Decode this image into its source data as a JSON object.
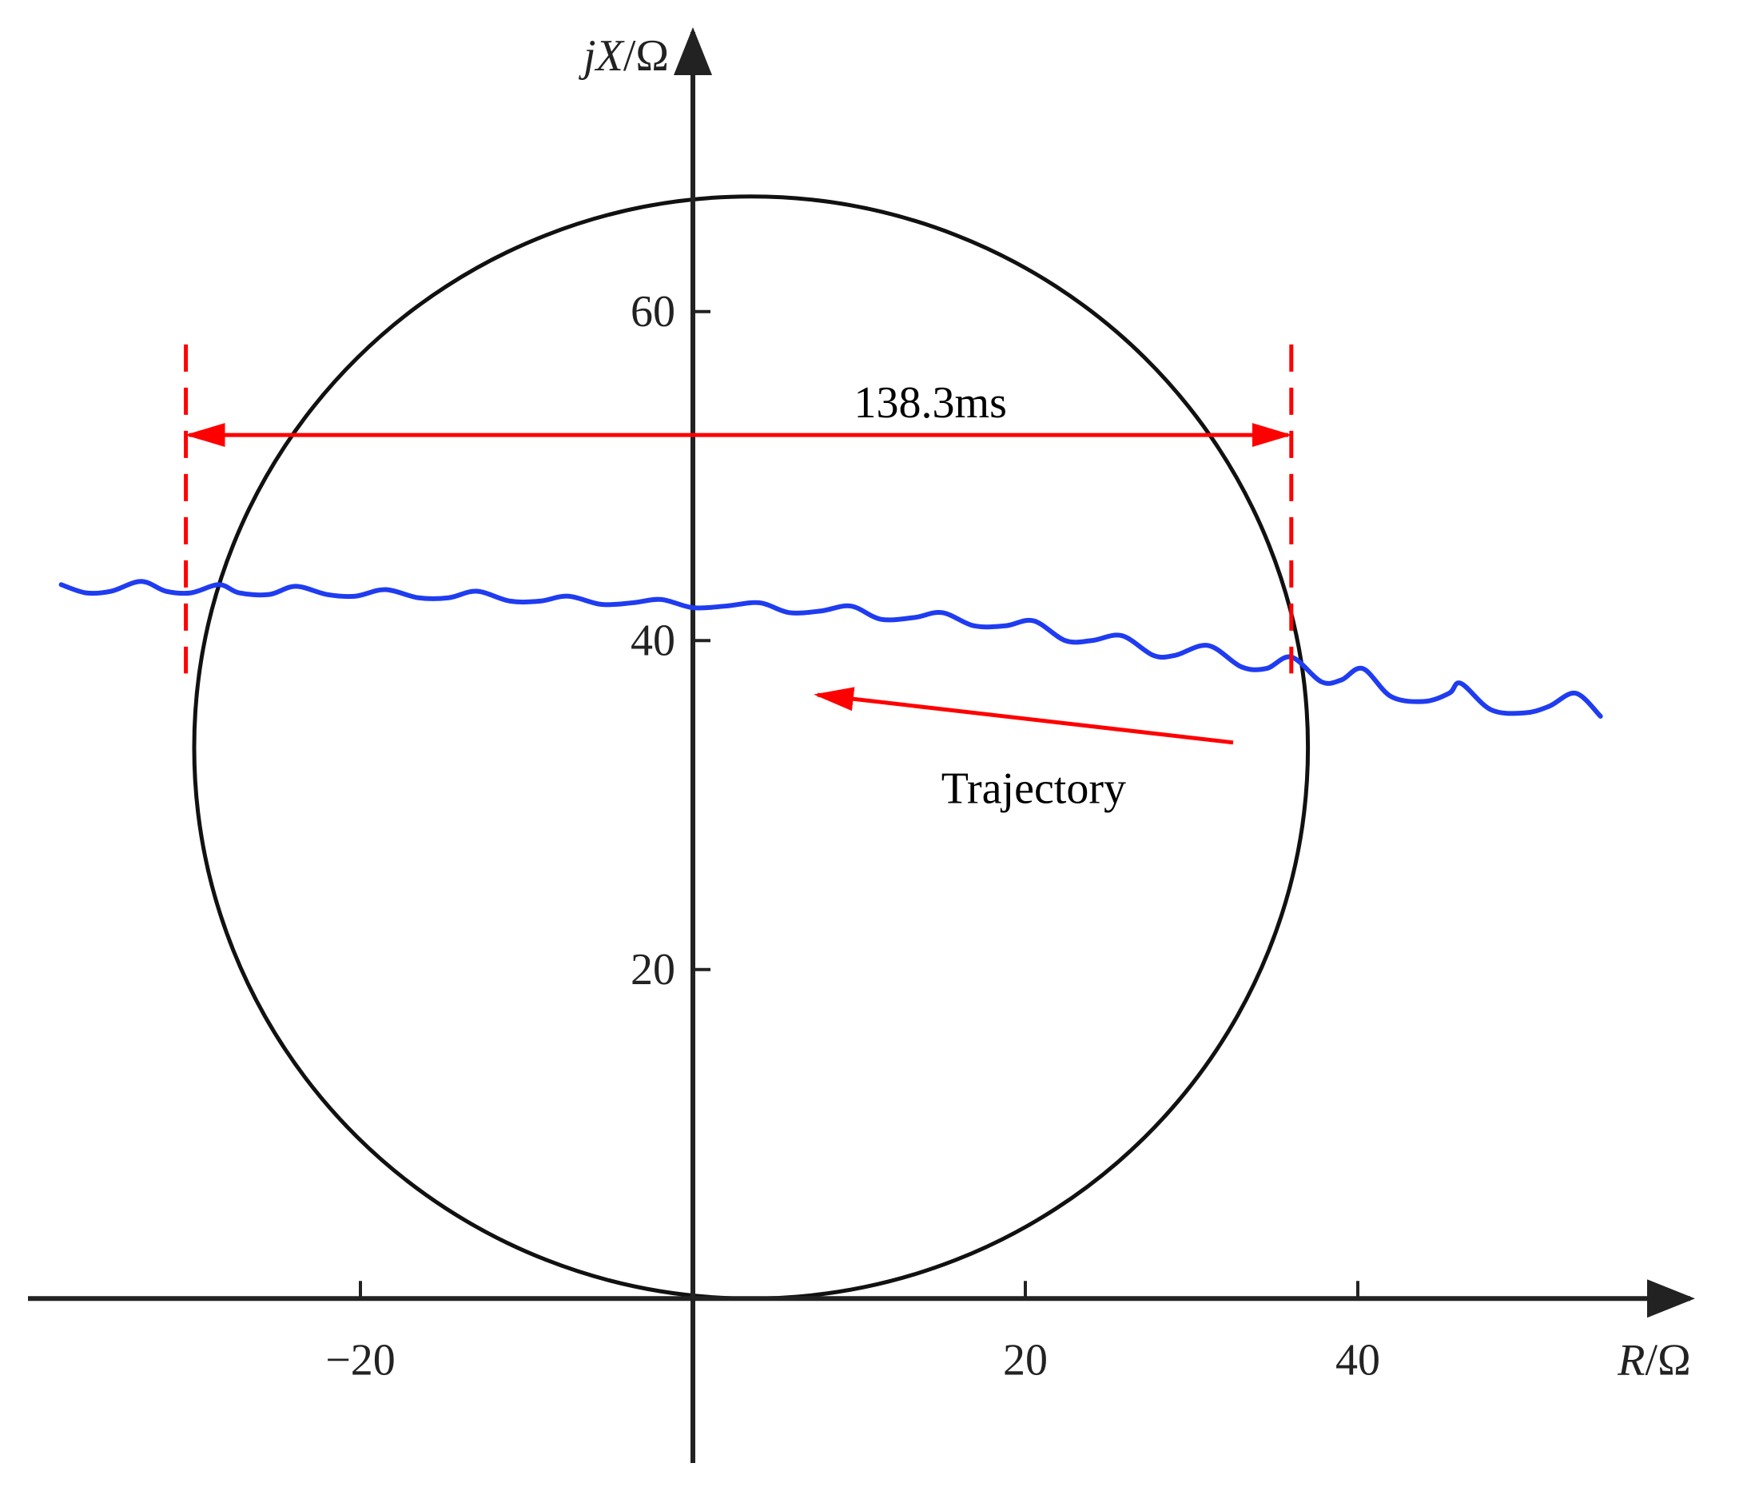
{
  "chart_data": {
    "type": "line",
    "xlabel": {
      "italic": "R",
      "unit": "/Ω"
    },
    "ylabel": {
      "prefix": "j",
      "italic": "X",
      "unit": "/Ω"
    },
    "xlim": [
      -40,
      60
    ],
    "ylim": [
      -10,
      77
    ],
    "xticks": [
      -20,
      20,
      40
    ],
    "xtick_labels": [
      "−20",
      "20",
      "40"
    ],
    "yticks": [
      20,
      40,
      60
    ],
    "ytick_labels": [
      "20",
      "40",
      "60"
    ],
    "grid": false,
    "circle": {
      "center": [
        3.5,
        33.5
      ],
      "radius": 33.5
    },
    "trajectory": {
      "x": [
        -38,
        -36.5,
        -35,
        -33.2,
        -31.7,
        -30.2,
        -28.5,
        -27.3,
        -25.5,
        -23.9,
        -22,
        -20.3,
        -18.5,
        -16.5,
        -14.7,
        -13,
        -11,
        -9.2,
        -7.5,
        -5.5,
        -3.6,
        -1.9,
        0,
        2,
        4,
        5.8,
        7.7,
        9.5,
        11.3,
        13.3,
        15,
        16.9,
        18.8,
        20.5,
        22.4,
        24,
        25.8,
        27.7,
        29,
        31,
        33,
        34.5,
        36,
        37.8,
        39,
        40.3,
        42,
        44,
        45.5,
        46.2,
        48,
        50,
        51.5,
        53.1,
        54.6
      ],
      "y": [
        43.4,
        42.9,
        43.0,
        43.6,
        43.0,
        42.9,
        43.4,
        42.9,
        42.8,
        43.3,
        42.8,
        42.7,
        43.1,
        42.6,
        42.6,
        43.0,
        42.4,
        42.4,
        42.7,
        42.2,
        42.3,
        42.5,
        42.0,
        42.1,
        42.3,
        41.7,
        41.8,
        42.1,
        41.3,
        41.4,
        41.7,
        40.9,
        40.9,
        41.2,
        40.0,
        40.0,
        40.3,
        39.1,
        39.1,
        39.7,
        38.4,
        38.3,
        39.0,
        37.5,
        37.6,
        38.3,
        36.6,
        36.3,
        36.8,
        37.4,
        35.8,
        35.6,
        36.0,
        36.8,
        35.4
      ]
    },
    "annotations": {
      "duration_label": "138.3ms",
      "duration_y": 52.5,
      "duration_x": [
        -30.5,
        36
      ],
      "marker_lines_x": [
        -30.5,
        36
      ],
      "marker_lines_y": [
        38,
        58
      ],
      "trajectory_label": "Trajectory",
      "trajectory_label_at": [
        20.5,
        31
      ],
      "direction_arrow_from": [
        32.5,
        33.8
      ],
      "direction_arrow_to": [
        7.5,
        36.7
      ]
    },
    "colors": {
      "axes": "#222222",
      "circle": "#111111",
      "trajectory": "#1f3cf0",
      "annotation": "#ff0000"
    }
  }
}
